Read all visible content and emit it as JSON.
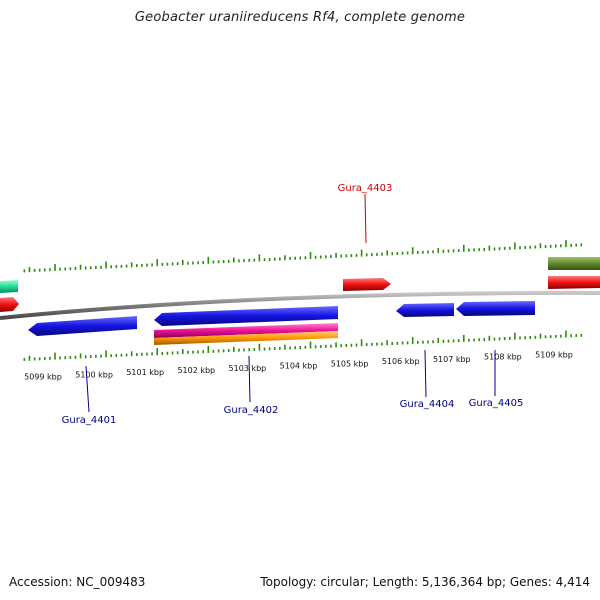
{
  "title": "Geobacter uraniireducens Rf4, complete genome",
  "footer": {
    "accession": "Accession: NC_009483",
    "summary": "Topology: circular; Length: 5,136,364 bp; Genes: 4,414"
  },
  "colors": {
    "backbone": "#8a8a8a",
    "tick": "#2e8b12",
    "forward_label": "#cc0000",
    "reverse_label": "#000088",
    "blue": "#1414e0",
    "red": "#ee1111",
    "green": "#5f8a2c",
    "teal": "#22dd99",
    "magenta": "#ee1199",
    "orange": "#ff9900"
  },
  "scale": {
    "tick_labels": [
      {
        "kbp": 5099,
        "label": "5099 kbp"
      },
      {
        "kbp": 5100,
        "label": "5100 kbp"
      },
      {
        "kbp": 5101,
        "label": "5101 kbp"
      },
      {
        "kbp": 5102,
        "label": "5102 kbp"
      },
      {
        "kbp": 5103,
        "label": "5103 kbp"
      },
      {
        "kbp": 5104,
        "label": "5104 kbp"
      },
      {
        "kbp": 5105,
        "label": "5105 kbp"
      },
      {
        "kbp": 5106,
        "label": "5106 kbp"
      },
      {
        "kbp": 5107,
        "label": "5107 kbp"
      },
      {
        "kbp": 5108,
        "label": "5108 kbp"
      },
      {
        "kbp": 5109,
        "label": "5109 kbp"
      }
    ]
  },
  "labels": {
    "Gura_4401": "Gura_4401",
    "Gura_4402": "Gura_4402",
    "Gura_4403": "Gura_4403",
    "Gura_4404": "Gura_4404",
    "Gura_4405": "Gura_4405"
  }
}
